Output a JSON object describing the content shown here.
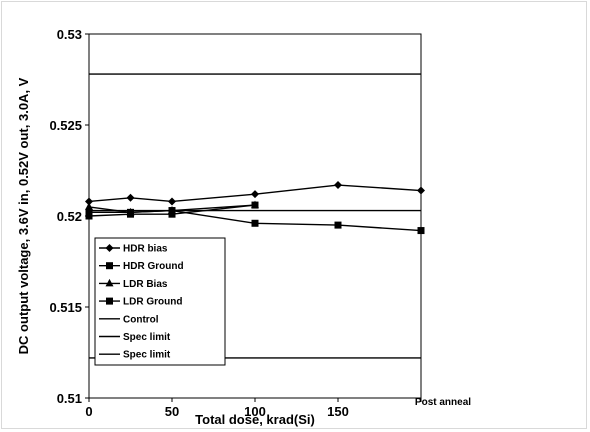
{
  "chart_data": {
    "type": "line",
    "title": "",
    "xlabel": "Total dose, krad(Si)",
    "ylabel": "DC output voltage, 3.6V in, 0.52V out, 3.0A, V",
    "xlim": [
      0,
      200
    ],
    "ylim": [
      0.51,
      0.53
    ],
    "x_ticks": [
      {
        "value": 0,
        "label": "0"
      },
      {
        "value": 50,
        "label": "50"
      },
      {
        "value": 100,
        "label": "100"
      },
      {
        "value": 150,
        "label": "150"
      },
      {
        "value": 200,
        "label": "Post anneal"
      }
    ],
    "y_ticks": [
      {
        "value": 0.51,
        "label": "0.51"
      },
      {
        "value": 0.515,
        "label": "0.515"
      },
      {
        "value": 0.52,
        "label": "0.52"
      },
      {
        "value": 0.525,
        "label": "0.525"
      },
      {
        "value": 0.53,
        "label": "0.53"
      }
    ],
    "grid": false,
    "legend_position": "bottom-left",
    "series": [
      {
        "name": "HDR bias",
        "marker": "diamond",
        "x": [
          0,
          25,
          50,
          100,
          150,
          200
        ],
        "y": [
          0.5208,
          0.521,
          0.5208,
          0.5212,
          0.5217,
          0.5214
        ]
      },
      {
        "name": "HDR Ground",
        "marker": "square",
        "x": [
          0,
          25,
          50,
          100,
          150,
          200
        ],
        "y": [
          0.5202,
          0.5202,
          0.5203,
          0.5196,
          0.5195,
          0.5192
        ]
      },
      {
        "name": "LDR Bias",
        "marker": "triangle",
        "x": [
          0,
          25,
          50,
          100
        ],
        "y": [
          0.5205,
          0.5202,
          0.5203,
          0.5206
        ]
      },
      {
        "name": "LDR Ground",
        "marker": "square",
        "x": [
          0,
          25,
          50,
          100
        ],
        "y": [
          0.52,
          0.5201,
          0.5201,
          0.5206
        ]
      },
      {
        "name": "Control",
        "marker": "none",
        "x": [
          0,
          200
        ],
        "y": [
          0.5203,
          0.5203
        ]
      },
      {
        "name": "Spec limit",
        "marker": "none",
        "x": [
          0,
          200
        ],
        "y": [
          0.5278,
          0.5278
        ]
      },
      {
        "name": "Spec limit",
        "marker": "none",
        "x": [
          0,
          200
        ],
        "y": [
          0.5122,
          0.5122
        ]
      }
    ],
    "colors": {
      "line": "#000000",
      "frame": "#d9d9d9",
      "legend_border": "#000000"
    }
  }
}
